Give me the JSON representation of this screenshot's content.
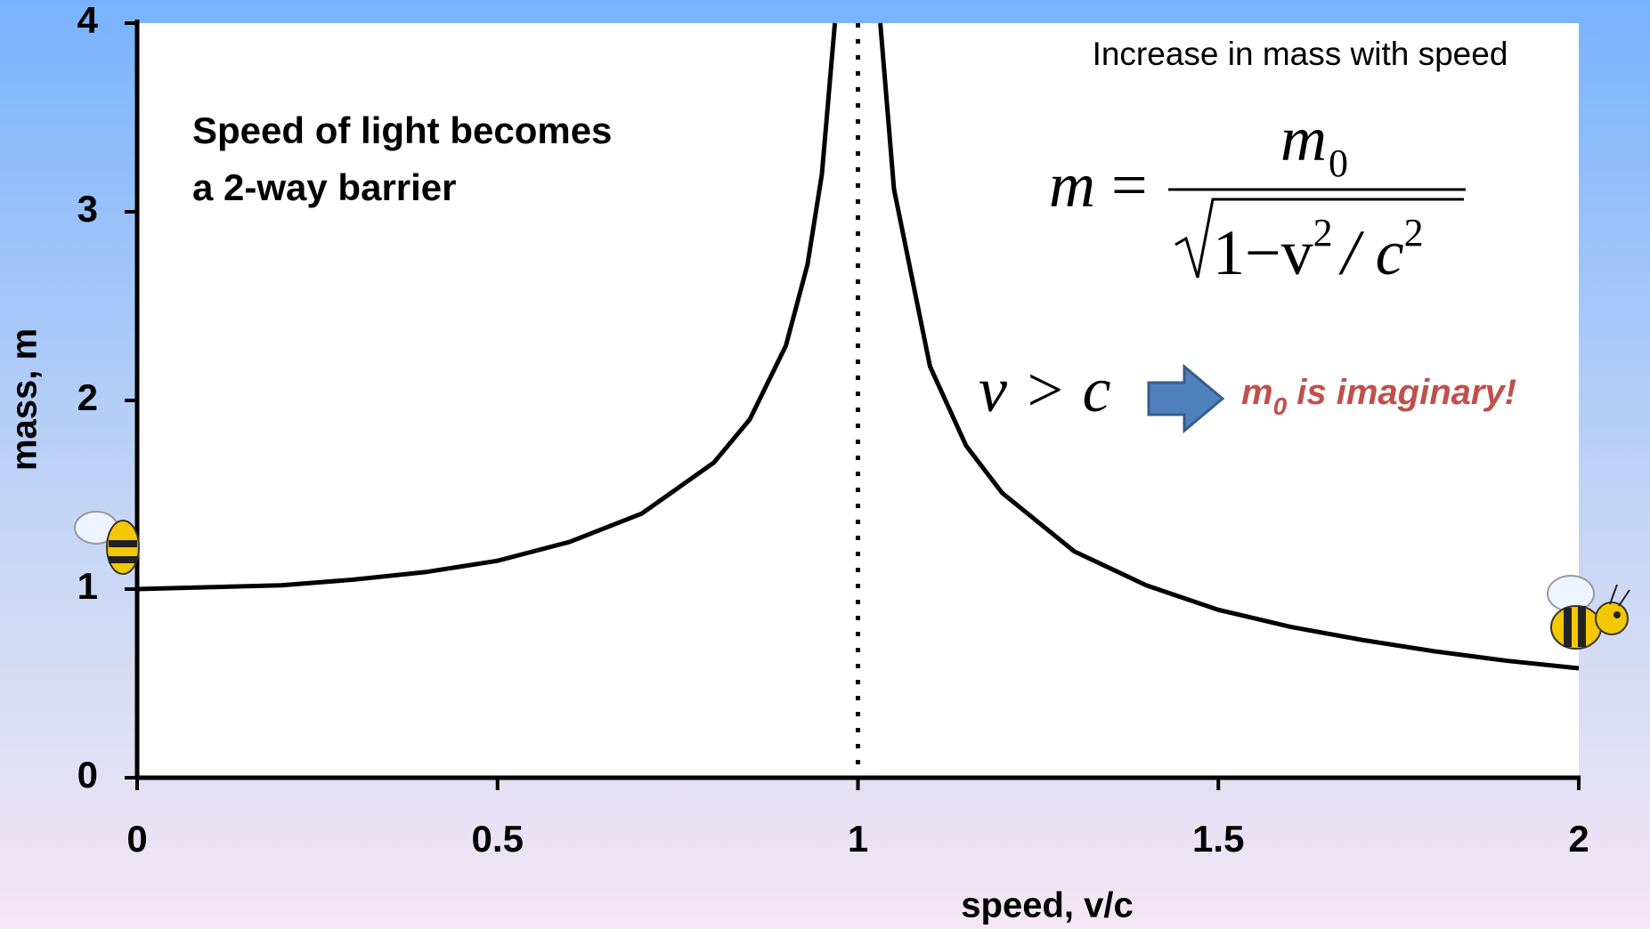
{
  "chart_data": {
    "type": "line",
    "title": "Increase in mass with speed",
    "annotation": [
      "Speed of light becomes",
      "a 2-way barrier"
    ],
    "formula": {
      "lhs": "m",
      "eq": "=",
      "num": "m",
      "num_sub": "0",
      "den": "1−v",
      "den_sup1": "2",
      "den_mid": "/ c",
      "den_sup2": "2"
    },
    "condition": "v > c",
    "result": {
      "base": "m",
      "sub": "0",
      "rest": " is imaginary!"
    },
    "xlabel": "speed, v/c",
    "ylabel": "mass, m",
    "x": [
      0,
      0.1,
      0.2,
      0.3,
      0.4,
      0.5,
      0.6,
      0.7,
      0.8,
      0.85,
      0.9,
      0.93,
      0.95,
      0.968,
      1,
      1.031,
      1.05,
      1.1,
      1.15,
      1.2,
      1.3,
      1.4,
      1.5,
      1.6,
      1.7,
      1.8,
      1.9,
      2.0
    ],
    "series": [
      {
        "color": "#000000",
        "values": [
          1,
          1.01,
          1.02,
          1.05,
          1.09,
          1.15,
          1.25,
          1.4,
          1.67,
          1.9,
          2.29,
          2.72,
          3.2,
          4.0,
          null,
          4.0,
          3.12,
          2.18,
          1.76,
          1.51,
          1.2,
          1.02,
          0.89,
          0.8,
          0.73,
          0.67,
          0.62,
          0.58
        ]
      }
    ],
    "vline": 1,
    "xlim": [
      0,
      2
    ],
    "xticks": [
      0,
      0.5,
      1,
      1.5,
      2
    ],
    "ylim": [
      0,
      4
    ],
    "yticks": [
      0,
      1,
      2,
      3,
      4
    ]
  }
}
